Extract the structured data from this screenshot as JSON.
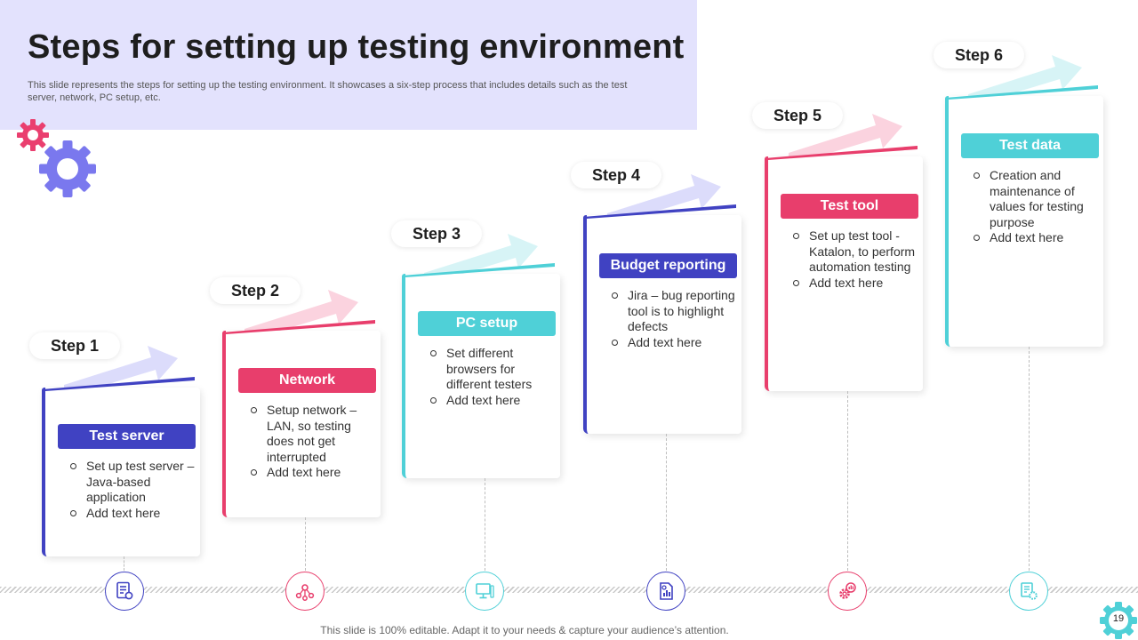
{
  "header": {
    "title": "Steps for setting up testing environment",
    "subtitle": "This slide represents the steps for setting up the testing environment. It showcases a six-step process that includes details such as the test server, network, PC setup, etc."
  },
  "colors": {
    "header_bg": "#e3e2fd",
    "indigo": "#4042c2",
    "pink": "#e83e6c",
    "teal": "#4fd0d7",
    "gear_pink": "#ea3f6f",
    "gear_purple": "#7a78ee"
  },
  "steps": [
    {
      "label": "Step 1",
      "title": "Test server",
      "bullets": [
        "Set up test server – Java-based application",
        "Add text here"
      ],
      "icon": "server-checklist-icon"
    },
    {
      "label": "Step 2",
      "title": "Network",
      "bullets": [
        "Setup network – LAN, so testing does not get interrupted",
        "Add text here"
      ],
      "icon": "network-users-icon"
    },
    {
      "label": "Step 3",
      "title": "PC setup",
      "bullets": [
        "Set different browsers for different testers",
        "Add text here"
      ],
      "icon": "computer-icon"
    },
    {
      "label": "Step 4",
      "title": "Budget reporting",
      "bullets": [
        "Jira – bug reporting tool is to highlight defects",
        "Add text here"
      ],
      "icon": "report-chart-icon"
    },
    {
      "label": "Step 5",
      "title": "Test tool",
      "bullets": [
        "Set up test tool - Katalon, to perform automation testing",
        "Add text here"
      ],
      "icon": "gear-chart-icon"
    },
    {
      "label": "Step 6",
      "title": "Test data",
      "bullets": [
        "Creation and maintenance of values for testing purpose",
        "Add text here"
      ],
      "icon": "data-settings-icon"
    }
  ],
  "footer": {
    "text": "This slide is 100% editable. Adapt it to your needs & capture your audience’s attention."
  },
  "page_number": "19"
}
